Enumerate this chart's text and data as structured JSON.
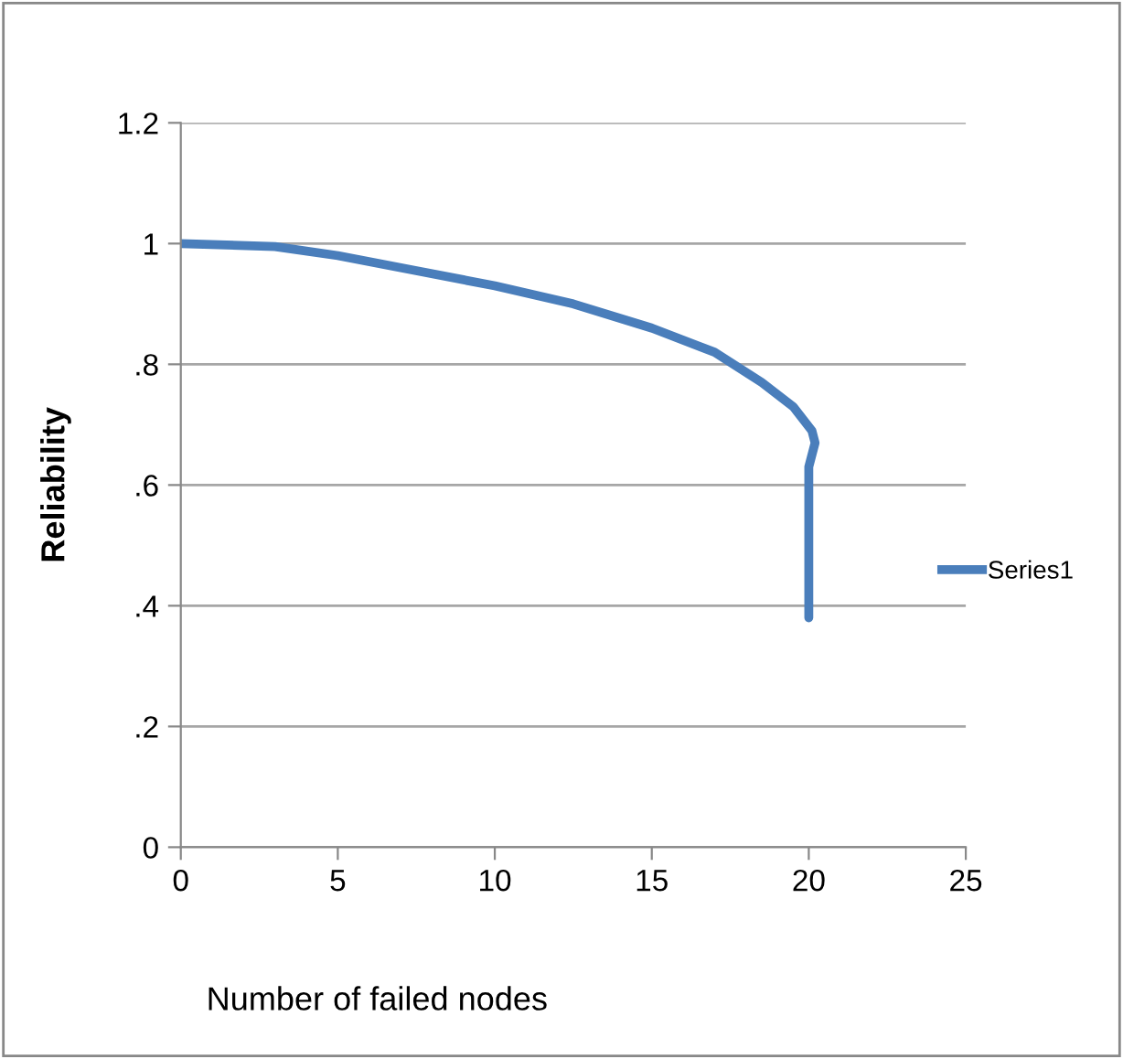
{
  "chart_data": {
    "type": "line",
    "xlabel": "Number of failed nodes",
    "ylabel": "Reliability",
    "series": [
      {
        "name": "Series1",
        "color": "#4a7ebb",
        "x": [
          0,
          3,
          5,
          7.5,
          10,
          12.5,
          15,
          17,
          18.5,
          19.5,
          20.1,
          20.2,
          20.0,
          20.0,
          20.0
        ],
        "values": [
          1.0,
          0.995,
          0.98,
          0.955,
          0.93,
          0.9,
          0.86,
          0.82,
          0.77,
          0.73,
          0.69,
          0.67,
          0.63,
          0.6,
          0.38
        ]
      }
    ],
    "xlim": [
      0,
      25
    ],
    "xticks": [
      0,
      5,
      10,
      15,
      20,
      25
    ],
    "ylim": [
      0,
      1.2
    ],
    "yticks": [
      {
        "value": 0,
        "label": "0"
      },
      {
        "value": 0.2,
        "label": ".2"
      },
      {
        "value": 0.4,
        "label": ".4"
      },
      {
        "value": 0.6,
        "label": ".6"
      },
      {
        "value": 0.8,
        "label": ".8"
      },
      {
        "value": 1,
        "label": "1"
      },
      {
        "value": 1.2,
        "label": "1.2"
      }
    ],
    "grid": "y",
    "legend": "right",
    "marker": "none",
    "line_style": "solid"
  }
}
